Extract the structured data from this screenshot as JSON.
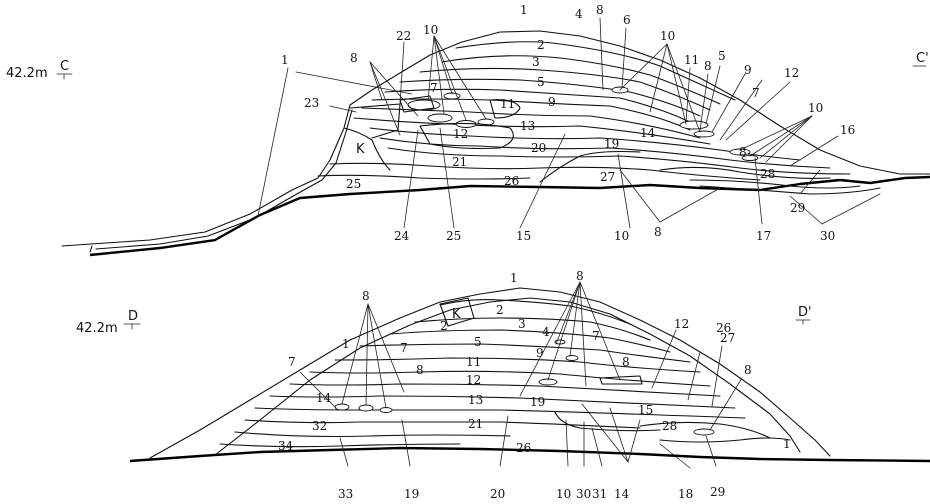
{
  "section_top": {
    "elevation": "42.2m",
    "start_letter": "C",
    "end_letter": "C'",
    "labels": {
      "l1a": "1",
      "l1b": "1",
      "l2": "2",
      "l3": "3",
      "l4": "4",
      "l5a": "5",
      "l5b": "5",
      "l6": "6",
      "l7a": "7",
      "l7b": "7",
      "l8a": "8",
      "l8b": "8",
      "l8c": "8",
      "l8d": "8",
      "l8e": "8",
      "l9a": "9",
      "l9b": "9",
      "l10a": "10",
      "l10b": "10",
      "l10c": "10",
      "l10d": "10",
      "l11a": "11",
      "l11b": "11",
      "l12a": "12",
      "l12b": "12",
      "l13": "13",
      "l14": "14",
      "l15": "15",
      "l16": "16",
      "l17": "17",
      "l19": "19",
      "l20": "20",
      "l21": "21",
      "l22": "22",
      "l23": "23",
      "l24": "24",
      "l25a": "25",
      "l25b": "25",
      "l26": "26",
      "l27": "27",
      "l28": "28",
      "l29": "29",
      "l30": "30",
      "lK": "K"
    }
  },
  "section_bottom": {
    "elevation": "42.2m",
    "start_letter": "D",
    "end_letter": "D'",
    "labels": {
      "l1a": "1",
      "l1b": "1",
      "l1c": "1",
      "l2a": "2",
      "l2b": "2",
      "l3": "3",
      "l4": "4",
      "l5": "5",
      "l7a": "7",
      "l7b": "7",
      "l7c": "7",
      "l8a": "8",
      "l8b": "8",
      "l8c": "8",
      "l8d": "8",
      "l8e": "8",
      "l9": "9",
      "l10": "10",
      "l11": "11",
      "l12a": "12",
      "l12b": "12",
      "l13": "13",
      "l14a": "14",
      "l14b": "14",
      "l15": "15",
      "l18": "18",
      "l19a": "19",
      "l19b": "19",
      "l20": "20",
      "l21": "21",
      "l26a": "26",
      "l26b": "26",
      "l27": "27",
      "l28": "28",
      "l29": "29",
      "l30": "30",
      "l31": "31",
      "l32": "32",
      "l33": "33",
      "l34": "34",
      "lK": "K"
    }
  }
}
